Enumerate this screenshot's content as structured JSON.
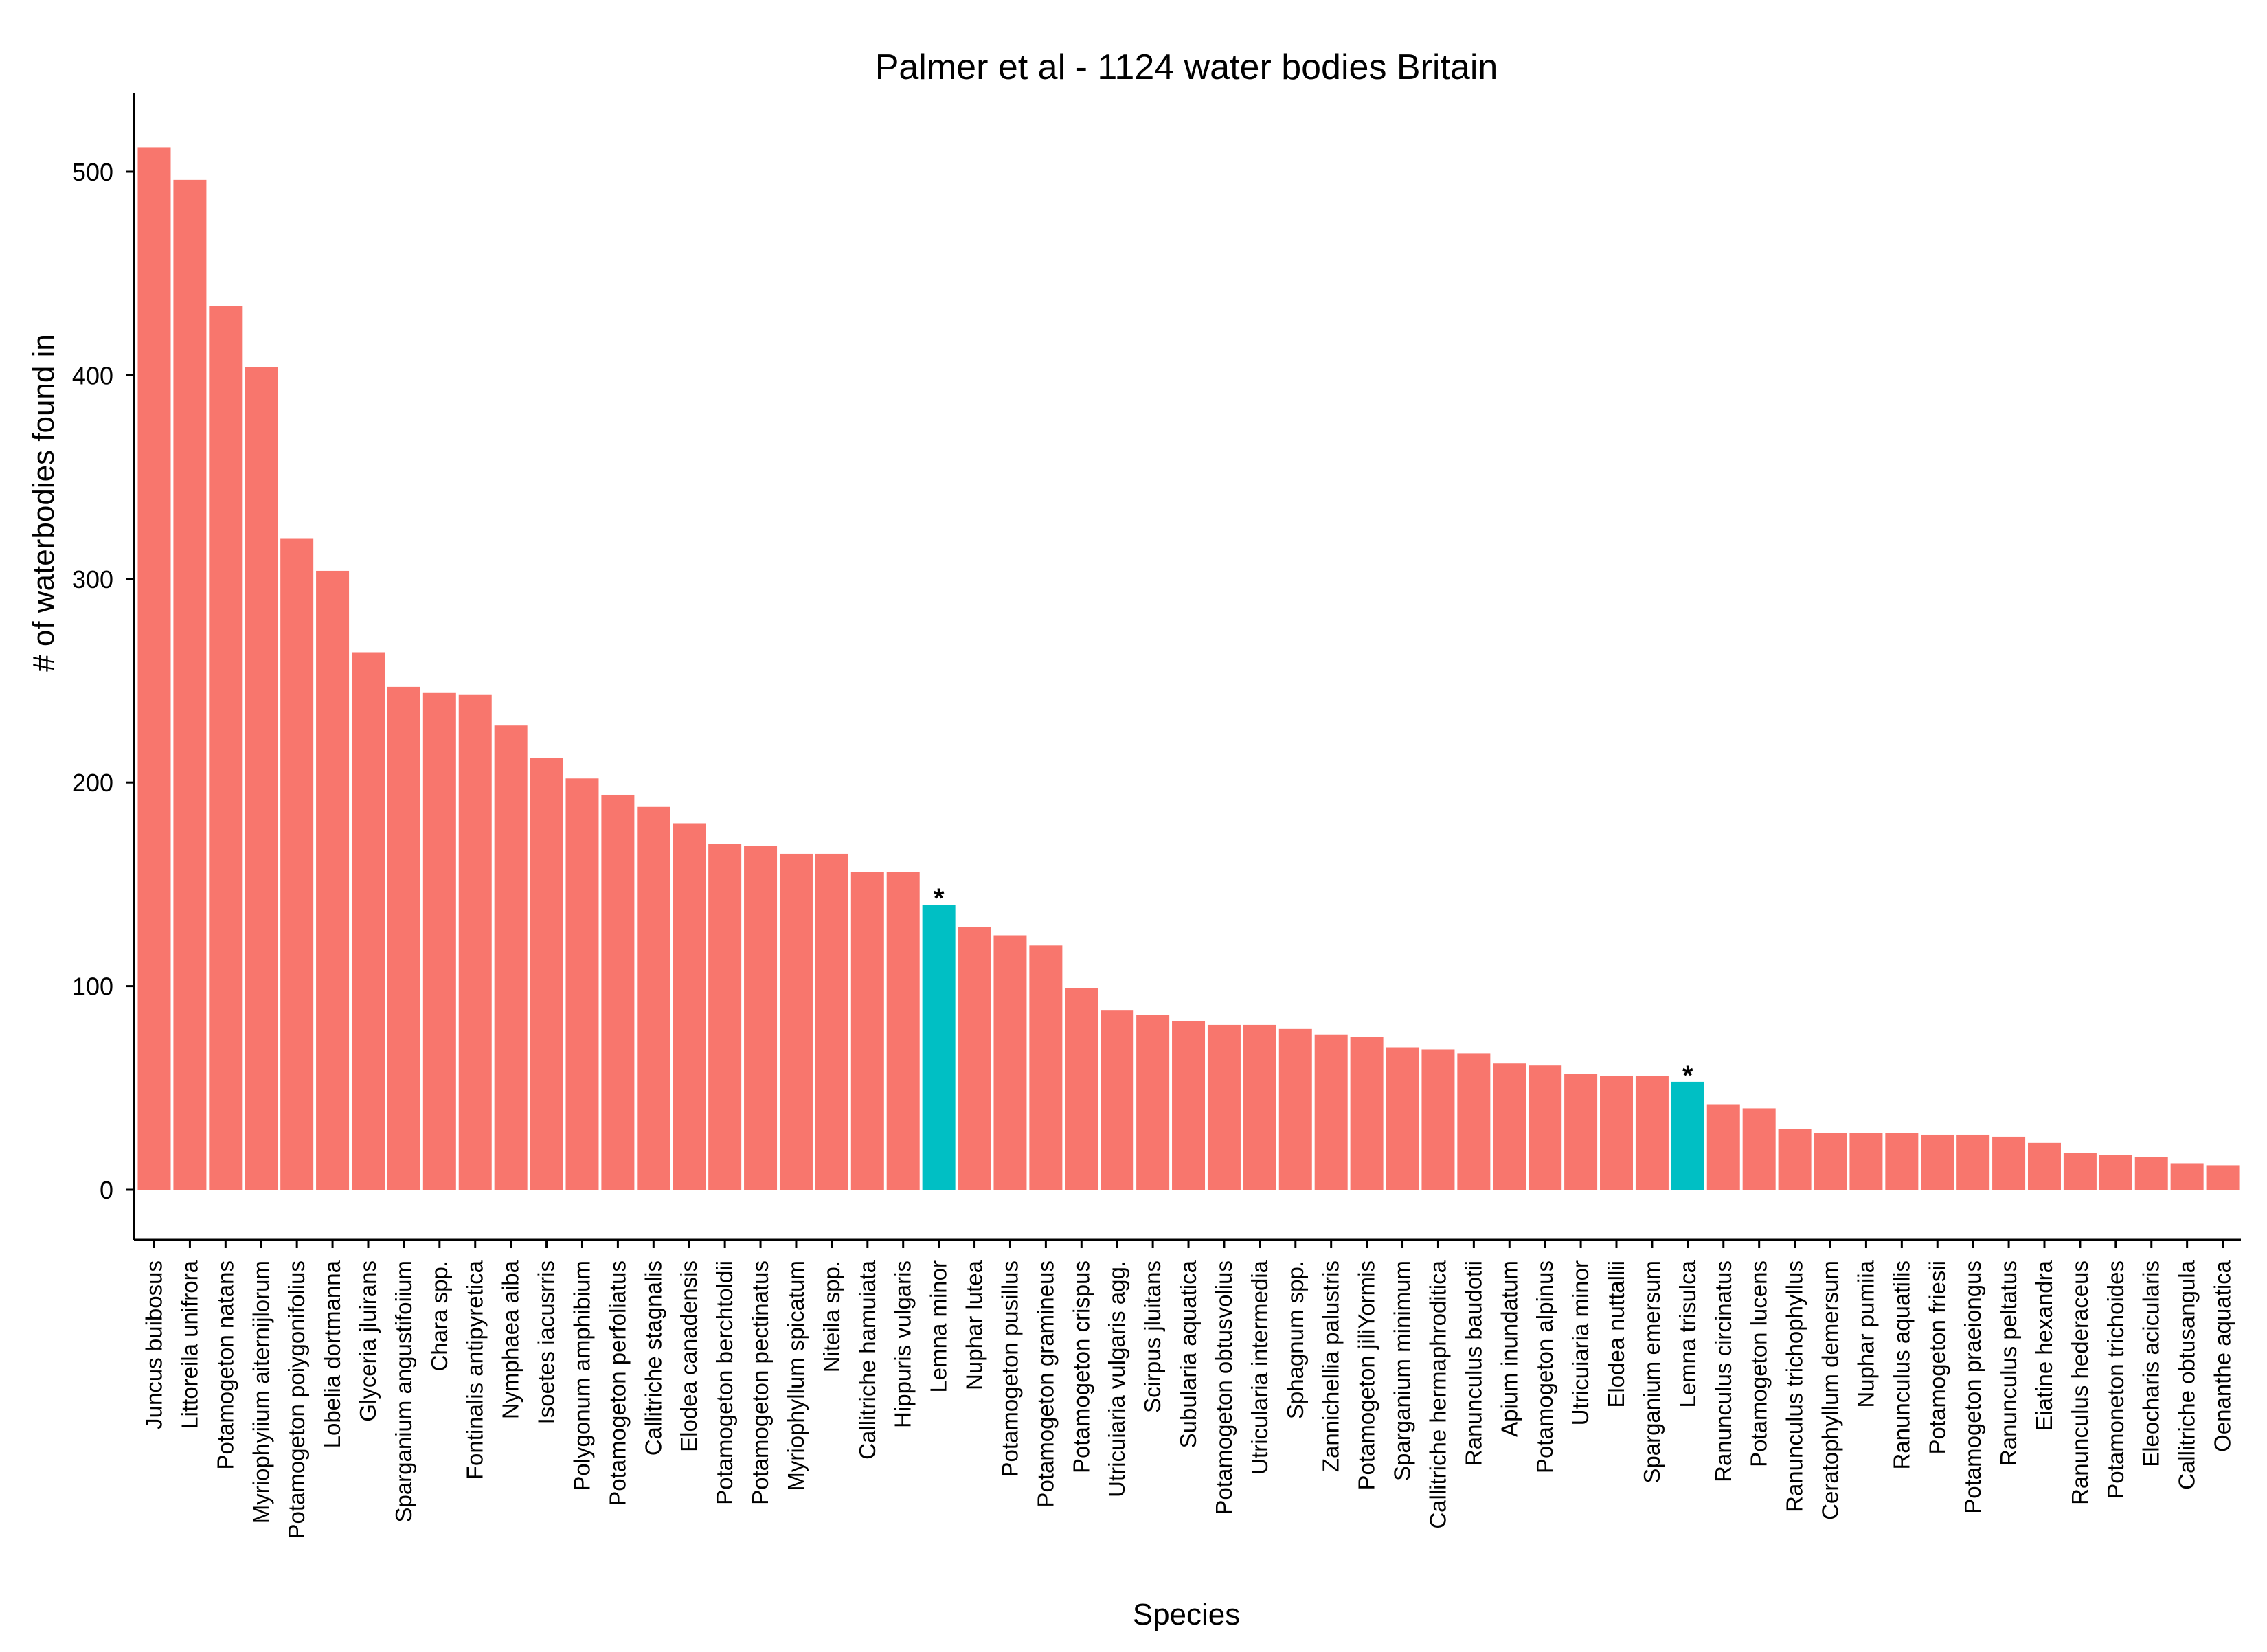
{
  "chart_data": {
    "type": "bar",
    "title": "Palmer et al - 1124 water bodies Britain",
    "xlabel": "Species",
    "ylabel": "# of waterbodies found in",
    "ylim": [
      -25,
      540
    ],
    "yticks": [
      0,
      100,
      200,
      300,
      400,
      500
    ],
    "grid": false,
    "legend": "none",
    "colors": {
      "default": "#F8766D",
      "highlight": "#00BFC4"
    },
    "highlight_mark": "*",
    "categories": [
      "Juncus buibosus",
      "Littoreila unifrora",
      "Potamogeton natans",
      "Myriophyiium aiternijlorum",
      "Potamogeton poiygonifolius",
      "Lobelia dortmanna",
      "Glyceria jluirans",
      "Sparganium angustifoiium",
      "Chara spp.",
      "Fontinalis antipyretica",
      "Nymphaea aiba",
      "Isoetes iacusrris",
      "Polygonum amphibium",
      "Potamogeton perfoliatus",
      "Callitriche stagnalis",
      "Elodea canadensis",
      "Potamogeton berchtoldii",
      "Potamogeton pectinatus",
      "Myriophyllum spicatum",
      "Niteila spp.",
      "Callitriche hamuiata",
      "Hippuris vulgaris",
      "Lemna minor",
      "Nuphar lutea",
      "Potamogeton pusillus",
      "Potamogeton gramineus",
      "Potamogeton crispus",
      "Utricuiaria vulgaris agg.",
      "Scirpus jluitans",
      "Subularia aquatica",
      "Potamogeton obtusvolius",
      "Utricularia intermedia",
      "Sphagnum spp.",
      "Zannichellia palustris",
      "Potamogeton jiliYormis",
      "Sparganium minimum",
      "Callitriche hermaphroditica",
      "Ranunculus baudotii",
      "Apium inundatum",
      "Potamogeton alpinus",
      "Utricuiaria minor",
      "Elodea nuttallii",
      "Sparganium emersum",
      "Lemna trisulca",
      "Ranunculus circinatus",
      "Potamogeton lucens",
      "Ranunculus trichophyllus",
      "Ceratophyllum demersum",
      "Nuphar pumiia",
      "Ranunculus aquatilis",
      "Potamogeton friesii",
      "Potamogeton praeiongus",
      "Ranunculus peltatus",
      "Eiatine hexandra",
      "Ranunculus hederaceus",
      "Potamoneton trichoides",
      "Eleocharis acicularis",
      "Callitriche obtusangula",
      "Oenanthe aquatica"
    ],
    "values": [
      512,
      496,
      434,
      404,
      320,
      304,
      264,
      247,
      244,
      243,
      228,
      212,
      202,
      194,
      188,
      180,
      170,
      169,
      165,
      165,
      156,
      156,
      140,
      129,
      125,
      120,
      99,
      88,
      86,
      83,
      81,
      81,
      79,
      76,
      75,
      70,
      69,
      67,
      62,
      61,
      57,
      56,
      56,
      53,
      42,
      40,
      30,
      28,
      28,
      28,
      27,
      27,
      26,
      23,
      18,
      17,
      16,
      13,
      12
    ],
    "highlighted": [
      "Lemna minor",
      "Lemna trisulca"
    ]
  }
}
